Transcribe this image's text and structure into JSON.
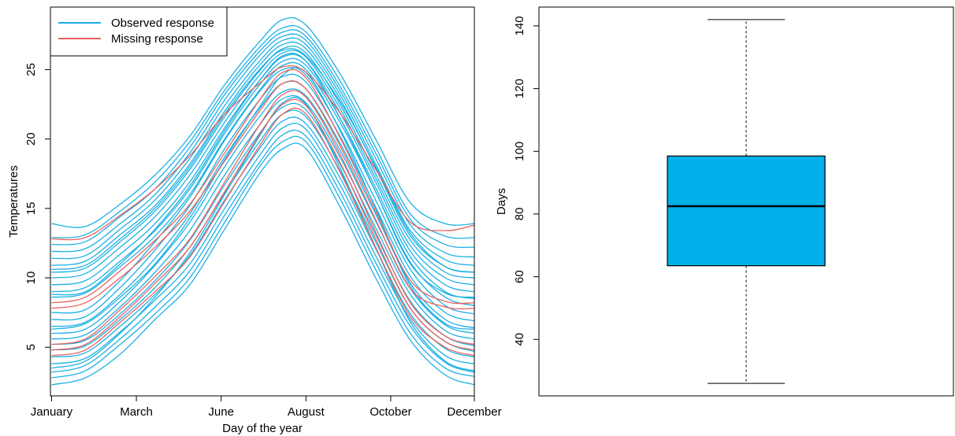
{
  "chart_data": [
    {
      "type": "line",
      "title": "",
      "xlabel": "Day of the year",
      "ylabel": "Temperatures",
      "xlim": [
        0,
        365
      ],
      "ylim": [
        1.5,
        29.5
      ],
      "x_ticks": [
        {
          "value": 1,
          "label": "January"
        },
        {
          "value": 74,
          "label": "March"
        },
        {
          "value": 147,
          "label": "June"
        },
        {
          "value": 220,
          "label": "August"
        },
        {
          "value": 293,
          "label": "October"
        },
        {
          "value": 365,
          "label": "December"
        }
      ],
      "y_ticks": [
        5,
        10,
        15,
        20,
        25
      ],
      "knots_x": [
        1,
        30,
        60,
        90,
        120,
        150,
        180,
        200,
        220,
        250,
        280,
        310,
        340,
        365
      ],
      "legend": {
        "position": "top-left",
        "entries": [
          {
            "label": "Observed response",
            "color": "#1cb0e4"
          },
          {
            "label": "Missing response",
            "color": "#e8625e"
          }
        ]
      },
      "series_groups": [
        {
          "name": "Observed response",
          "color": "#1cb0e4",
          "curves": [
            [
              2.3,
              2.8,
              4.5,
              7.0,
              9.5,
              13.5,
              17.5,
              19.3,
              19.3,
              15.0,
              10.0,
              5.5,
              3.0,
              2.3
            ],
            [
              2.8,
              3.3,
              5.2,
              7.4,
              10.0,
              14.0,
              18.0,
              19.8,
              19.8,
              15.6,
              10.6,
              6.0,
              3.5,
              2.9
            ],
            [
              3.2,
              3.7,
              5.6,
              7.9,
              10.5,
              14.5,
              18.3,
              20.3,
              20.2,
              16.1,
              11.1,
              6.5,
              3.9,
              3.2
            ],
            [
              3.8,
              4.2,
              6.1,
              8.4,
              11.0,
              15.0,
              18.8,
              20.8,
              20.7,
              16.6,
              11.6,
              7.0,
              4.4,
              3.8
            ],
            [
              4.3,
              4.6,
              6.5,
              8.8,
              11.6,
              15.6,
              19.3,
              21.3,
              21.1,
              17.1,
              12.1,
              7.4,
              4.9,
              4.3
            ],
            [
              4.8,
              5.1,
              7.0,
              9.3,
              12.2,
              16.1,
              19.8,
              21.8,
              21.6,
              17.6,
              12.6,
              7.8,
              5.4,
              4.7
            ],
            [
              5.2,
              5.5,
              7.4,
              9.8,
              12.7,
              16.7,
              20.4,
              22.3,
              22.1,
              18.1,
              13.1,
              8.3,
              5.8,
              5.1
            ],
            [
              5.6,
              5.9,
              7.9,
              10.4,
              13.4,
              17.4,
              21.0,
              22.9,
              22.6,
              18.6,
              13.6,
              8.8,
              6.2,
              5.6
            ],
            [
              6.0,
              6.3,
              8.3,
              10.9,
              14.0,
              18.0,
              21.6,
              23.4,
              23.1,
              19.1,
              14.1,
              9.2,
              6.6,
              6.0
            ],
            [
              6.5,
              6.8,
              8.8,
              11.4,
              14.6,
              18.7,
              22.2,
              24.0,
              23.6,
              19.6,
              14.6,
              9.6,
              7.0,
              6.4
            ],
            [
              7.0,
              7.2,
              9.3,
              12.0,
              15.2,
              19.3,
              22.8,
              24.5,
              24.1,
              20.1,
              15.1,
              10.1,
              7.5,
              6.9
            ],
            [
              7.5,
              7.7,
              9.8,
              12.6,
              15.8,
              19.9,
              23.4,
              25.0,
              24.6,
              20.6,
              15.6,
              10.6,
              8.0,
              7.4
            ],
            [
              8.6,
              8.9,
              10.8,
              13.0,
              16.0,
              20.0,
              23.5,
              25.3,
              25.0,
              21.1,
              16.2,
              11.1,
              8.6,
              8.0
            ],
            [
              9.0,
              9.3,
              11.2,
              13.4,
              16.4,
              20.4,
              23.9,
              25.6,
              25.3,
              21.4,
              16.5,
              11.5,
              9.0,
              8.5
            ],
            [
              9.5,
              9.8,
              11.7,
              13.9,
              16.9,
              20.8,
              24.2,
              25.9,
              25.6,
              21.8,
              16.9,
              11.9,
              9.5,
              9.0
            ],
            [
              10.0,
              10.3,
              12.2,
              14.4,
              17.4,
              21.2,
              24.6,
              26.2,
              25.9,
              22.1,
              17.2,
              12.3,
              10.0,
              9.5
            ],
            [
              10.4,
              10.7,
              12.6,
              14.8,
              17.8,
              21.6,
              24.9,
              26.5,
              26.2,
              22.4,
              17.5,
              12.7,
              10.4,
              10.0
            ],
            [
              10.9,
              11.2,
              13.1,
              15.2,
              18.2,
              22.0,
              25.3,
              26.8,
              26.5,
              22.8,
              17.9,
              13.0,
              10.8,
              10.4
            ],
            [
              11.4,
              11.6,
              13.5,
              15.6,
              18.6,
              22.4,
              25.6,
              27.1,
              26.8,
              23.1,
              18.2,
              13.4,
              11.3,
              10.9
            ],
            [
              11.9,
              12.1,
              13.9,
              16.0,
              19.0,
              22.8,
              26.0,
              27.4,
              27.1,
              23.4,
              18.6,
              13.8,
              11.8,
              11.5
            ],
            [
              12.4,
              12.6,
              14.4,
              16.4,
              19.4,
              23.2,
              26.3,
              27.7,
              27.4,
              23.7,
              19.0,
              14.2,
              12.4,
              12.2
            ],
            [
              12.9,
              13.1,
              14.8,
              16.9,
              19.8,
              23.5,
              26.6,
              28.0,
              27.7,
              24.1,
              19.4,
              14.6,
              13.0,
              12.9
            ],
            [
              13.9,
              13.7,
              15.3,
              17.4,
              20.2,
              23.9,
              27.0,
              28.6,
              28.2,
              24.6,
              20.0,
              15.4,
              13.9,
              13.9
            ],
            [
              6.3,
              6.7,
              8.6,
              11.0,
              14.3,
              18.5,
              22.3,
              24.6,
              24.8,
              20.5,
              15.0,
              9.4,
              6.7,
              6.3
            ],
            [
              3.5,
              4.0,
              6.0,
              8.6,
              11.8,
              16.0,
              20.2,
              22.6,
              22.5,
              17.8,
              12.2,
              6.8,
              4.0,
              3.3
            ],
            [
              8.8,
              9.0,
              11.0,
              13.5,
              16.6,
              20.6,
              24.2,
              26.0,
              25.6,
              21.4,
              16.2,
              11.0,
              8.9,
              8.6
            ],
            [
              10.6,
              10.9,
              12.8,
              15.0,
              18.0,
              21.8,
              25.0,
              26.4,
              26.0,
              22.6,
              18.0,
              13.2,
              10.8,
              10.4
            ]
          ]
        },
        {
          "name": "Missing response",
          "color": "#e8625e",
          "curves": [
            [
              4.4,
              4.8,
              6.8,
              9.0,
              11.5,
              15.5,
              19.5,
              21.8,
              21.8,
              17.5,
              12.2,
              7.2,
              5.0,
              4.4
            ],
            [
              4.8,
              5.2,
              7.2,
              9.6,
              12.2,
              16.2,
              20.3,
              22.5,
              22.4,
              18.2,
              12.8,
              7.8,
              5.4,
              4.8
            ],
            [
              5.2,
              5.6,
              7.7,
              10.1,
              12.8,
              16.9,
              21.0,
              23.2,
              23.0,
              18.8,
              13.3,
              8.2,
              5.8,
              5.2
            ],
            [
              7.8,
              8.2,
              10.0,
              12.2,
              14.8,
              18.4,
              22.0,
              24.0,
              23.6,
              19.4,
              14.2,
              9.2,
              7.9,
              7.8
            ],
            [
              8.2,
              8.6,
              10.5,
              12.7,
              15.3,
              19.0,
              22.8,
              24.8,
              24.4,
              20.0,
              14.8,
              9.8,
              8.3,
              8.2
            ],
            [
              12.8,
              12.9,
              14.5,
              16.4,
              18.8,
              21.8,
              24.0,
              25.2,
              24.8,
              21.8,
              17.8,
              14.0,
              13.4,
              13.8
            ]
          ]
        }
      ]
    },
    {
      "type": "box",
      "title": "",
      "xlabel": "",
      "ylabel": "Days",
      "ylim": [
        22,
        146
      ],
      "y_ticks": [
        40,
        60,
        80,
        100,
        120,
        140
      ],
      "whisker_low": 26,
      "q1": 63.5,
      "median": 82.5,
      "q3": 98.5,
      "whisker_high": 142,
      "box_color": "#00b0e8"
    }
  ]
}
